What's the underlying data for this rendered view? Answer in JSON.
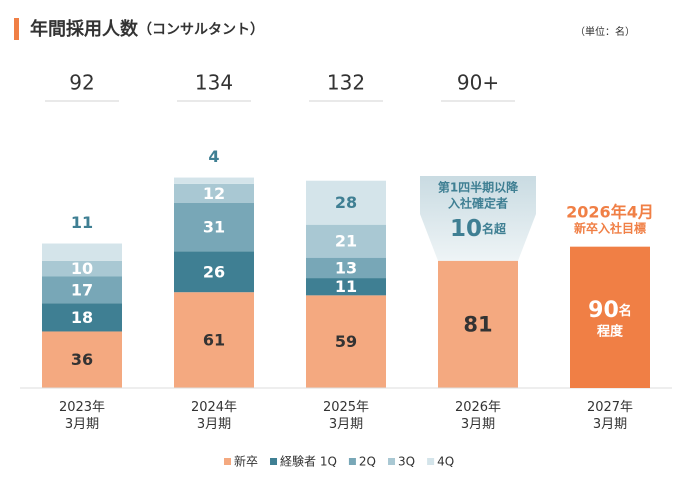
{
  "chart_data": {
    "type": "bar",
    "stacked": true,
    "title": "年間採用人数",
    "subtitle": "（コンサルタント）",
    "unit_note": "（単位：名）",
    "categories": [
      "2023年\n3月期",
      "2024年\n3月期",
      "2025年\n3月期",
      "2026年\n3月期",
      "2027年\n3月期"
    ],
    "totals": [
      "92",
      "134",
      "132",
      "90+"
    ],
    "series": [
      {
        "name": "新卒",
        "color": "#f4a980",
        "label_color": "#333333",
        "values": [
          36,
          61,
          59,
          81,
          null
        ]
      },
      {
        "name": "経験者 1Q",
        "color": "#3f7f93",
        "label_color": "#ffffff",
        "values": [
          18,
          26,
          11,
          null,
          null
        ]
      },
      {
        "name": "2Q",
        "color": "#78a7b7",
        "label_color": "#ffffff",
        "values": [
          17,
          31,
          13,
          null,
          null
        ]
      },
      {
        "name": "3Q",
        "color": "#a9c8d3",
        "label_color": "#ffffff",
        "values": [
          10,
          12,
          21,
          null,
          null
        ]
      },
      {
        "name": "4Q",
        "color": "#d4e4ea",
        "label_color": "#3f7f93",
        "values": [
          11,
          4,
          28,
          null,
          null
        ]
      }
    ],
    "ylim": [
      0,
      135
    ],
    "annotation": {
      "lines": [
        "第1四半期以降",
        "入社確定者"
      ],
      "value": 10,
      "unit": "名超"
    },
    "target": {
      "title": "2026年4月",
      "subtitle": "新卒入社目標",
      "value": 90,
      "unit": "名",
      "note": "程度",
      "color": "#f07f45"
    }
  }
}
